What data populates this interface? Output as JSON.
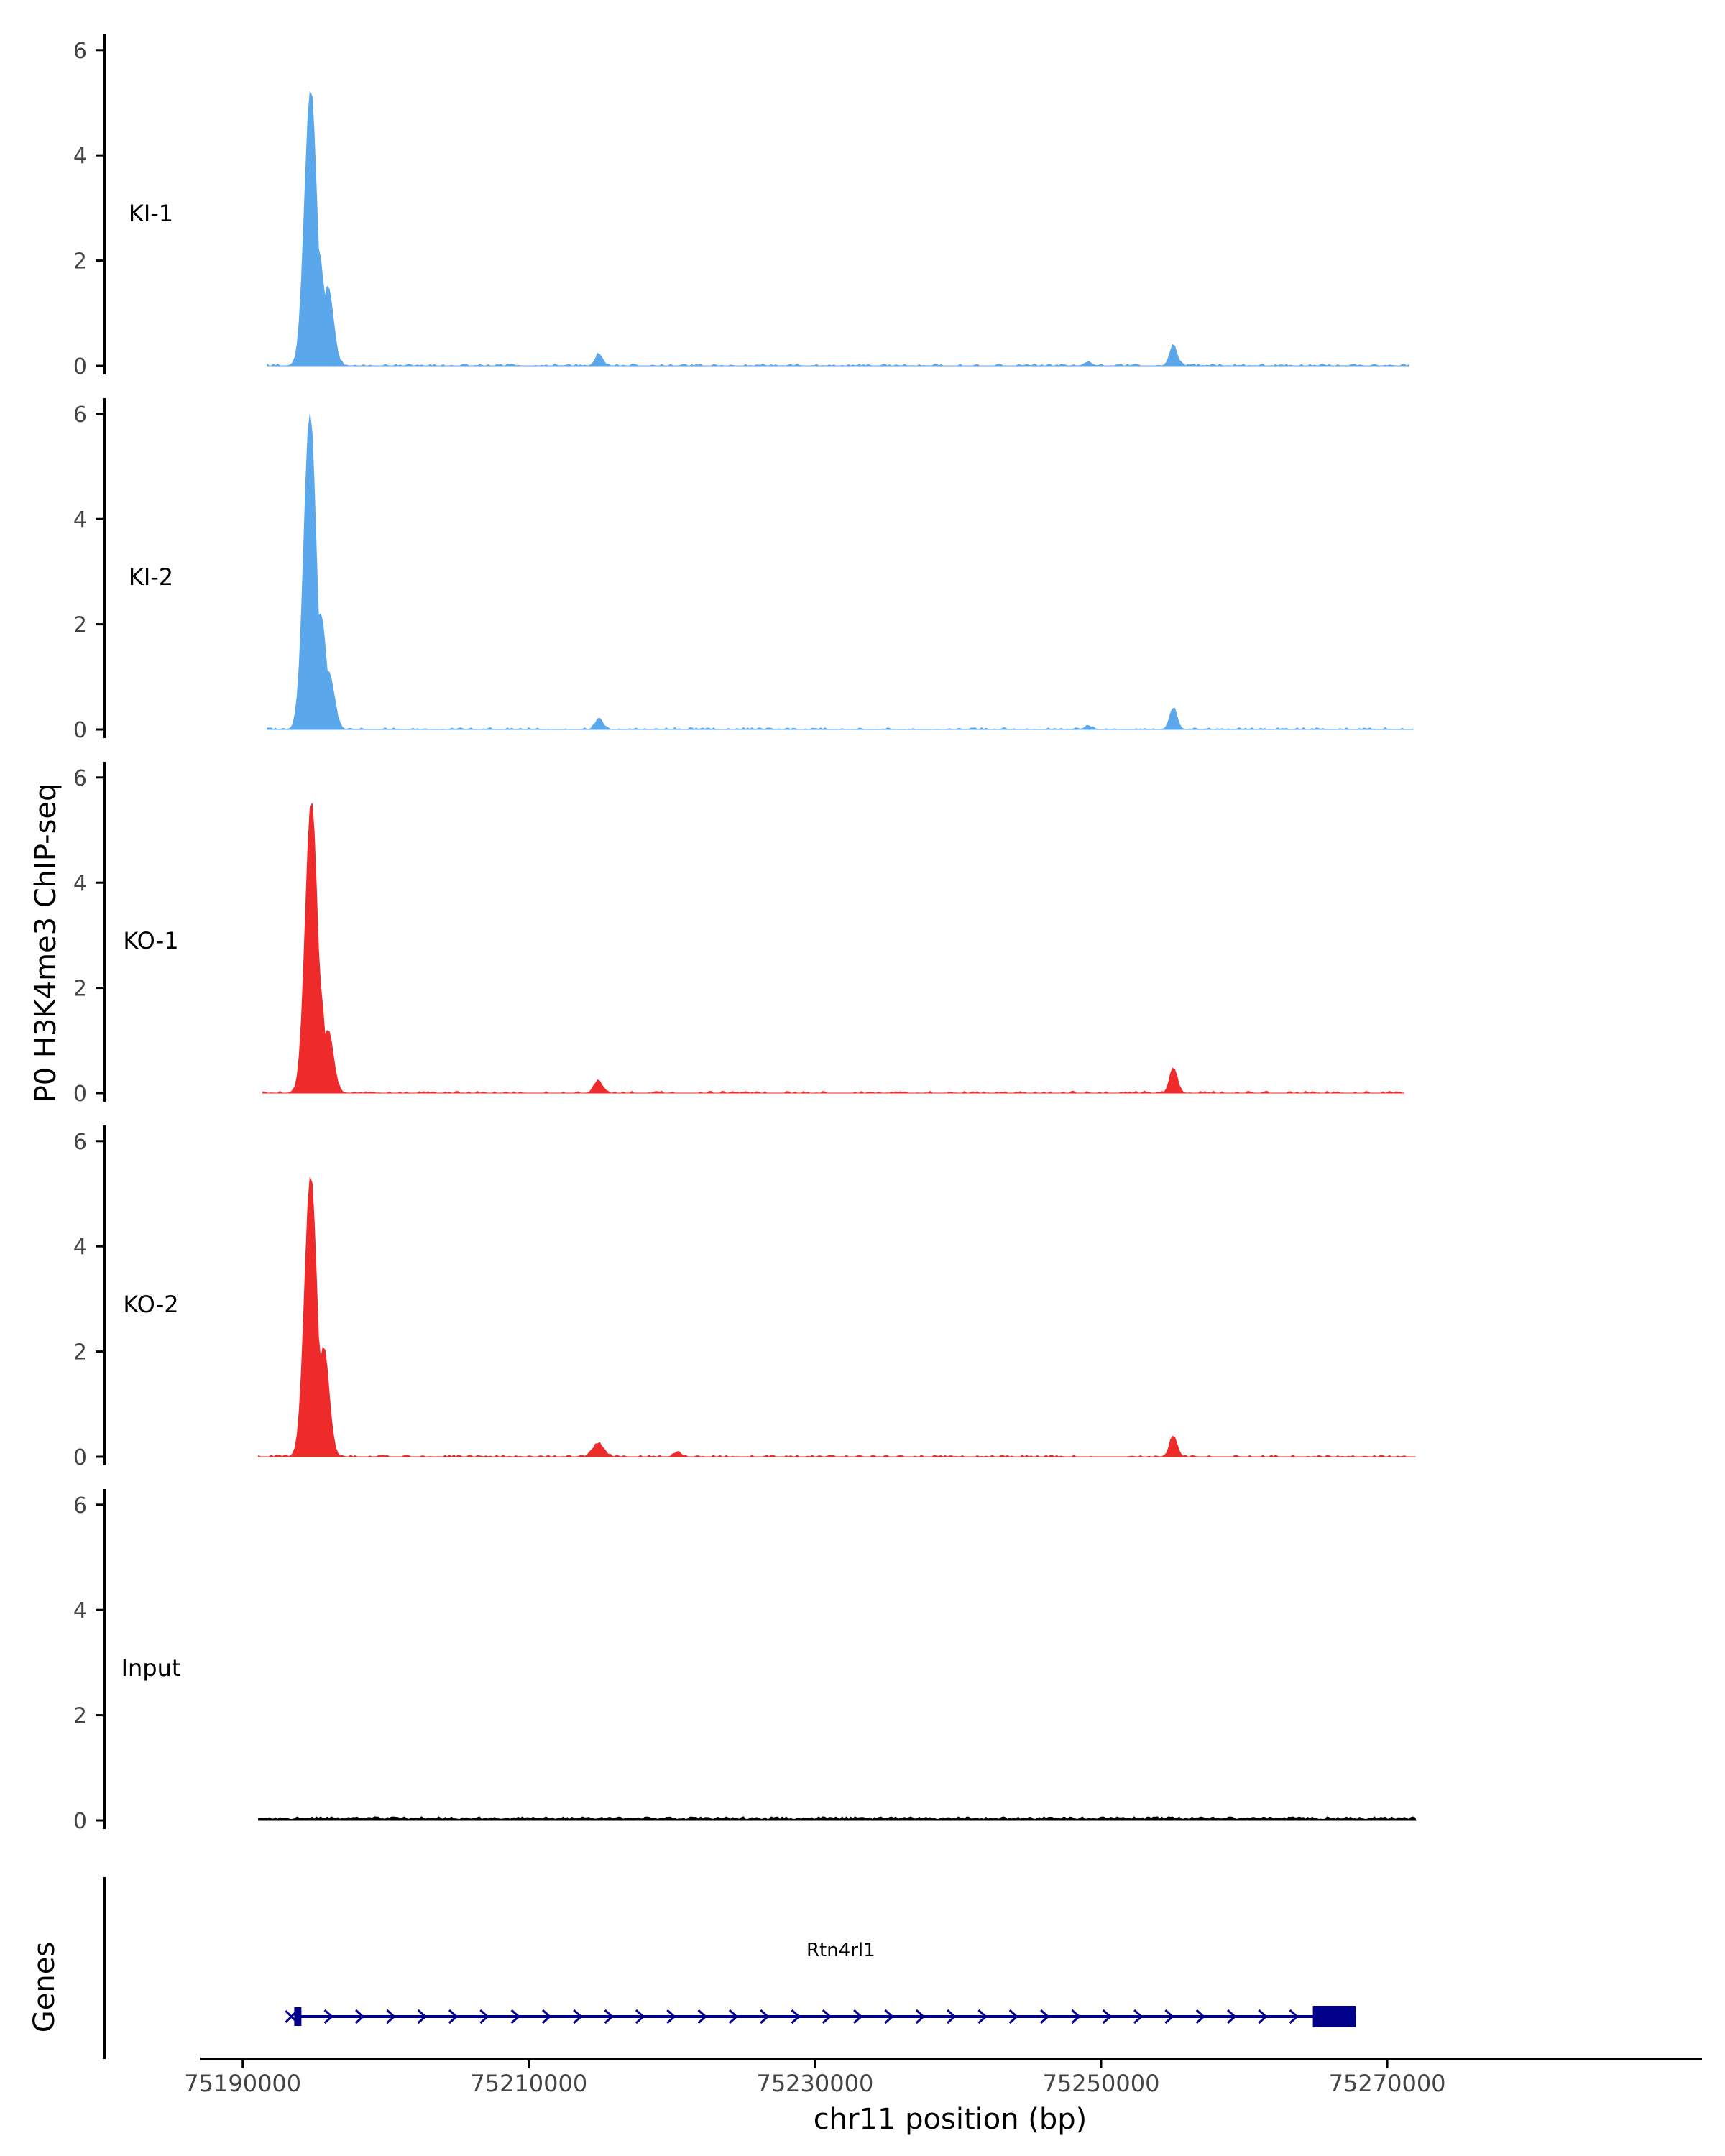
{
  "chart_data": {
    "type": "area",
    "ylabel": "P0 H3K4me3 ChIP-seq",
    "xlabel": "chr11 position (bp)",
    "ylim": [
      0,
      6.3
    ],
    "y_ticks": [
      "0",
      "2",
      "4",
      "6"
    ],
    "y_tick_values": [
      0,
      2,
      4,
      6
    ],
    "xlim": [
      75187000,
      75292000
    ],
    "x_ticks": [
      "75190000",
      "75210000",
      "75230000",
      "75250000",
      "75270000"
    ],
    "x_tick_values": [
      75190000,
      75210000,
      75230000,
      75250000,
      75270000
    ],
    "colors": {
      "KI": "#5AA7EC",
      "KO": "#EE2A2A",
      "Input": "#000000",
      "gene": "#00008B",
      "axis": "#000000",
      "tick_text": "#444444"
    },
    "tracks": [
      {
        "label": "KI-1",
        "color": "#5AA7EC",
        "range": [
          75191700,
          75271500
        ],
        "peaks": [
          [
            75194750,
            5.25
          ],
          [
            75195300,
            2.2
          ],
          [
            75195950,
            1.5
          ],
          [
            75214900,
            0.22
          ],
          [
            75249100,
            0.07
          ],
          [
            75255050,
            0.38
          ]
        ]
      },
      {
        "label": "KI-2",
        "color": "#5AA7EC",
        "range": [
          75191700,
          75271800
        ],
        "peaks": [
          [
            75194700,
            6.0
          ],
          [
            75195450,
            2.2
          ],
          [
            75196000,
            1.1
          ],
          [
            75214900,
            0.2
          ],
          [
            75249100,
            0.06
          ],
          [
            75255050,
            0.4
          ]
        ]
      },
      {
        "label": "KO-1",
        "color": "#EE2A2A",
        "range": [
          75191400,
          75271200
        ],
        "peaks": [
          [
            75194800,
            5.55
          ],
          [
            75195300,
            2.2
          ],
          [
            75195950,
            1.2
          ],
          [
            75214850,
            0.25
          ],
          [
            75255050,
            0.48
          ]
        ]
      },
      {
        "label": "KO-2",
        "color": "#EE2A2A",
        "range": [
          75191100,
          75272000
        ],
        "peaks": [
          [
            75194750,
            5.35
          ],
          [
            75195650,
            2.1
          ],
          [
            75214850,
            0.25
          ],
          [
            75220400,
            0.08
          ],
          [
            75255050,
            0.4
          ]
        ]
      },
      {
        "label": "Input",
        "color": "#000000",
        "range": [
          75191100,
          75272000
        ],
        "peaks": []
      }
    ],
    "genes_label": "Genes",
    "gene": {
      "name": "Rtn4rl1",
      "start": 75193800,
      "end": 75267800,
      "exons": [
        [
          75193600,
          75194100
        ],
        [
          75264800,
          75267800
        ]
      ],
      "strand": "+"
    }
  }
}
